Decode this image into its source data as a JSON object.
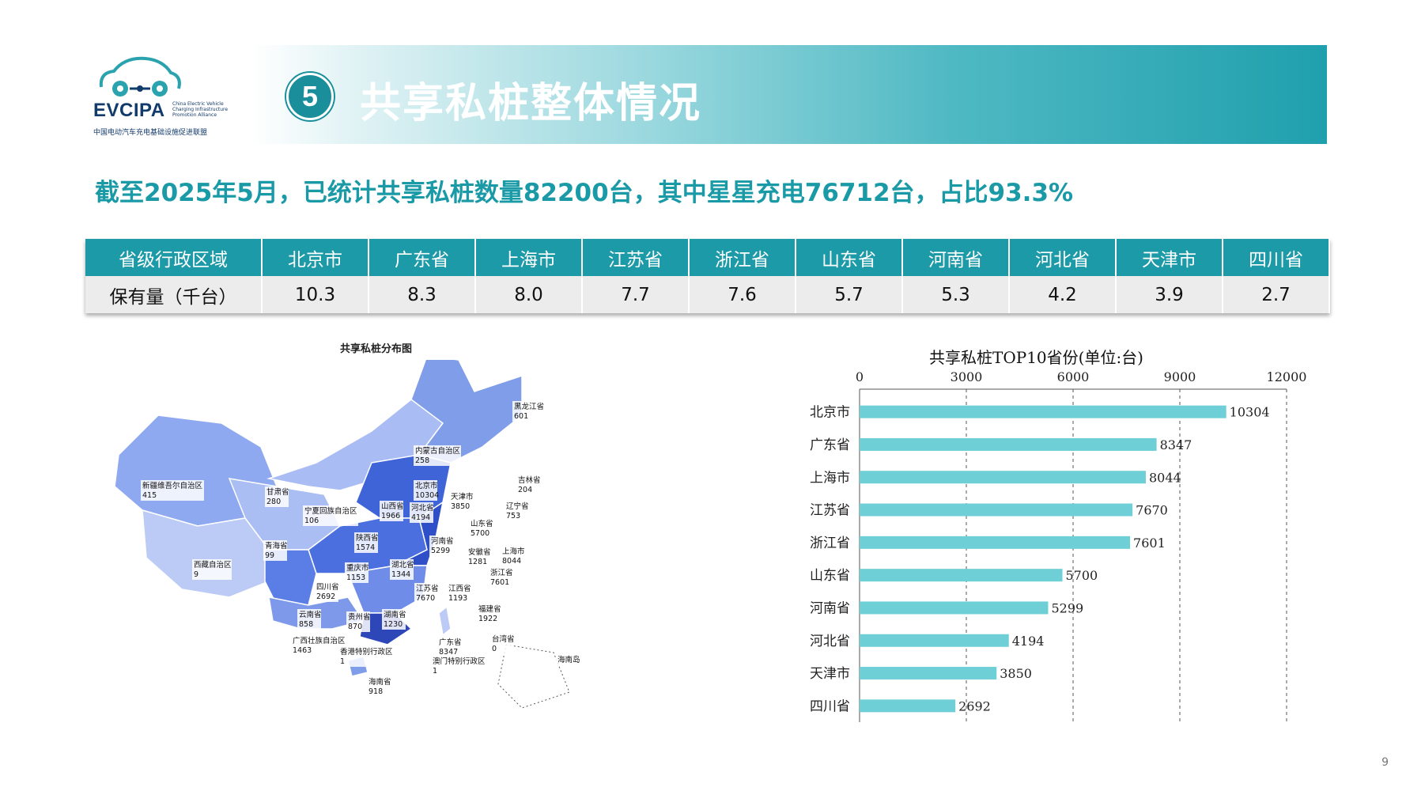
{
  "logo": {
    "brand": "EVCIPA",
    "small": "China Electric Vehicle Charging Infrastructure Promotion Alliance",
    "cn": "中国电动汽车充电基础设施促进联盟"
  },
  "header": {
    "number": "5",
    "title": "共享私桩整体情况"
  },
  "subtitle": "截至2025年5月，已统计共享私桩数量82200台，其中星星充电76712台，占比93.3%",
  "table": {
    "header_label": "省级行政区域",
    "row_label": "保有量（千台）",
    "provinces": [
      "北京市",
      "广东省",
      "上海市",
      "江苏省",
      "浙江省",
      "山东省",
      "河南省",
      "河北省",
      "天津市",
      "四川省"
    ],
    "values": [
      "10.3",
      "8.3",
      "8.0",
      "7.7",
      "7.6",
      "5.7",
      "5.3",
      "4.2",
      "3.9",
      "2.7"
    ]
  },
  "map": {
    "title": "共享私桩分布图",
    "labels": [
      {
        "name": "黑龙江省",
        "value": "601"
      },
      {
        "name": "吉林省",
        "value": "204"
      },
      {
        "name": "辽宁省",
        "value": "753"
      },
      {
        "name": "内蒙古自治区",
        "value": "258"
      },
      {
        "name": "北京市",
        "value": "10304"
      },
      {
        "name": "天津市",
        "value": "3850"
      },
      {
        "name": "河北省",
        "value": "4194"
      },
      {
        "name": "山西省",
        "value": "1966"
      },
      {
        "name": "山东省",
        "value": "5700"
      },
      {
        "name": "新疆维吾尔自治区",
        "value": "415"
      },
      {
        "name": "甘肃省",
        "value": "280"
      },
      {
        "name": "宁夏回族自治区",
        "value": "106"
      },
      {
        "name": "陕西省",
        "value": "1574"
      },
      {
        "name": "河南省",
        "value": "5299"
      },
      {
        "name": "安徽省",
        "value": "1281"
      },
      {
        "name": "上海市",
        "value": "8044"
      },
      {
        "name": "青海省",
        "value": "99"
      },
      {
        "name": "西藏自治区",
        "value": "9"
      },
      {
        "name": "重庆市",
        "value": "1153"
      },
      {
        "name": "湖北省",
        "value": "1344"
      },
      {
        "name": "浙江省",
        "value": "7601"
      },
      {
        "name": "四川省",
        "value": "2692"
      },
      {
        "name": "江苏省",
        "value": "7670"
      },
      {
        "name": "江西省",
        "value": "1193"
      },
      {
        "name": "福建省",
        "value": "1922"
      },
      {
        "name": "云南省",
        "value": "858"
      },
      {
        "name": "贵州省",
        "value": "870"
      },
      {
        "name": "湖南省",
        "value": "1230"
      },
      {
        "name": "广西壮族自治区",
        "value": "1463"
      },
      {
        "name": "香港特别行政区",
        "value": "1"
      },
      {
        "name": "广东省",
        "value": "8347"
      },
      {
        "name": "台湾省",
        "value": "0"
      },
      {
        "name": "澳门特别行政区",
        "value": "1"
      },
      {
        "name": "海南省",
        "value": "918"
      },
      {
        "name": "海南岛",
        "value": ""
      }
    ]
  },
  "chart_data": {
    "type": "bar",
    "title": "共享私桩TOP10省份(单位:台)",
    "categories": [
      "北京市",
      "广东省",
      "上海市",
      "江苏省",
      "浙江省",
      "山东省",
      "河南省",
      "河北省",
      "天津市",
      "四川省"
    ],
    "values": [
      10304,
      8347,
      8044,
      7670,
      7601,
      5700,
      5299,
      4194,
      3850,
      2692
    ],
    "xlim": [
      0,
      12000
    ],
    "ticks": [
      "0",
      "3000",
      "6000",
      "9000",
      "12000"
    ],
    "orientation": "horizontal",
    "grid": "dashed vertical",
    "bar_color": "#6ecfd6"
  },
  "page_number": "9"
}
